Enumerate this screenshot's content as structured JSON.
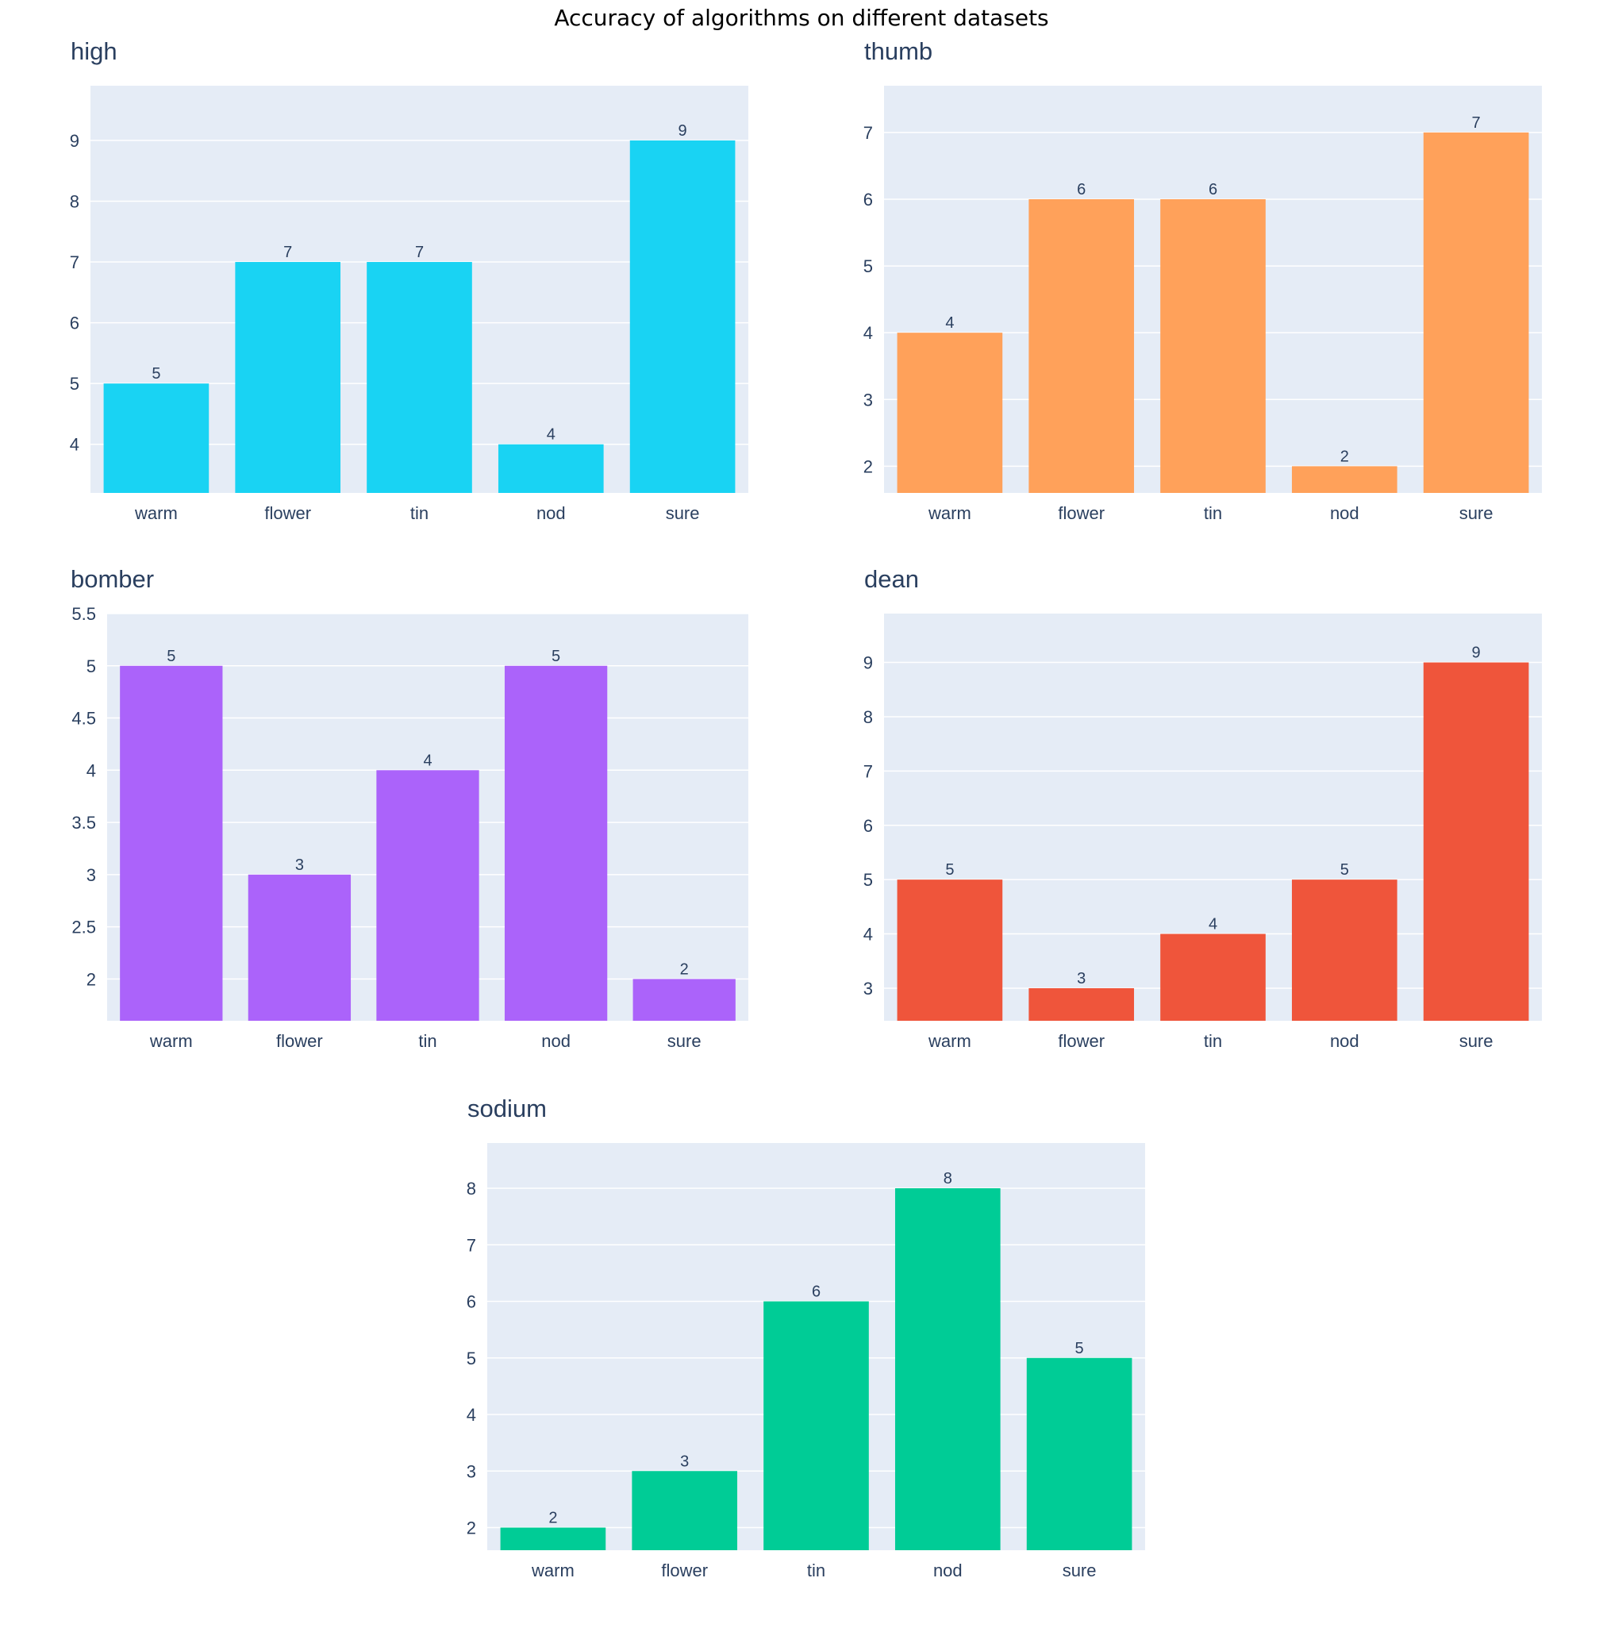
{
  "chart_data": {
    "type": "bar",
    "title": "Accuracy of algorithms on different datasets",
    "categories": [
      "warm",
      "flower",
      "tin",
      "nod",
      "sure"
    ],
    "subplots": [
      {
        "title": "high",
        "color": "#19d3f3",
        "values": [
          5,
          7,
          7,
          4,
          9
        ],
        "ylim": [
          3.2,
          9.9
        ],
        "yticks": [
          4,
          5,
          6,
          7,
          8,
          9
        ],
        "ytick_labels": [
          "4",
          "5",
          "6",
          "7",
          "8",
          "9"
        ]
      },
      {
        "title": "thumb",
        "color": "#ffa15a",
        "values": [
          4,
          6,
          6,
          2,
          7
        ],
        "ylim": [
          1.6,
          7.7
        ],
        "yticks": [
          2,
          3,
          4,
          5,
          6,
          7
        ],
        "ytick_labels": [
          "2",
          "3",
          "4",
          "5",
          "6",
          "7"
        ]
      },
      {
        "title": "bomber",
        "color": "#ab63fa",
        "values": [
          5,
          3,
          4,
          5,
          2
        ],
        "ylim": [
          1.6,
          5.5
        ],
        "yticks": [
          2,
          2.5,
          3,
          3.5,
          4,
          4.5,
          5,
          5.5
        ],
        "ytick_labels": [
          "2",
          "2.5",
          "3",
          "3.5",
          "4",
          "4.5",
          "5",
          "5.5"
        ]
      },
      {
        "title": "dean",
        "color": "#ef553b",
        "values": [
          5,
          3,
          4,
          5,
          9
        ],
        "ylim": [
          2.4,
          9.9
        ],
        "yticks": [
          3,
          4,
          5,
          6,
          7,
          8,
          9
        ],
        "ytick_labels": [
          "3",
          "4",
          "5",
          "6",
          "7",
          "8",
          "9"
        ]
      },
      {
        "title": "sodium",
        "color": "#00cc96",
        "values": [
          2,
          3,
          6,
          8,
          5
        ],
        "ylim": [
          1.6,
          8.8
        ],
        "yticks": [
          2,
          3,
          4,
          5,
          6,
          7,
          8
        ],
        "ytick_labels": [
          "2",
          "3",
          "4",
          "5",
          "6",
          "7",
          "8"
        ]
      }
    ]
  }
}
